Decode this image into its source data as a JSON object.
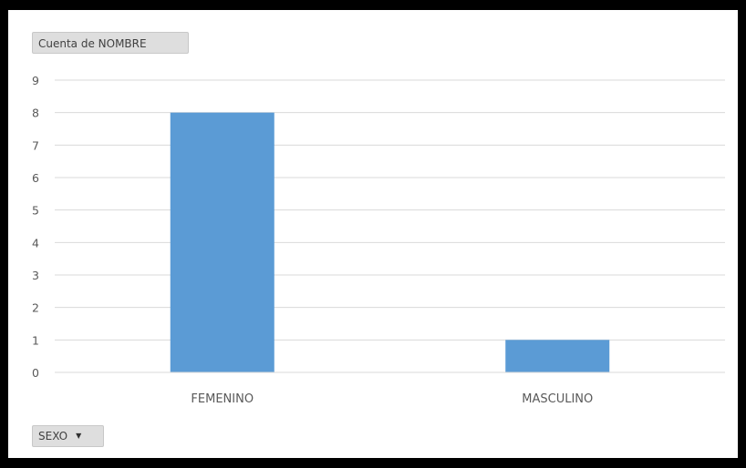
{
  "pivot": {
    "value_field_label": "Cuenta de NOMBRE",
    "axis_field_label": "SEXO",
    "axis_field_icon": "chevron-down-icon"
  },
  "chart_data": {
    "type": "bar",
    "categories": [
      "FEMENINO",
      "MASCULINO"
    ],
    "values": [
      8,
      1
    ],
    "title": "",
    "xlabel": "",
    "ylabel": "",
    "ylim": [
      0,
      9
    ],
    "yticks": [
      "0",
      "1",
      "2",
      "3",
      "4",
      "5",
      "6",
      "7",
      "8",
      "9"
    ],
    "grid": true,
    "legend": "none",
    "bar_color": "#5b9bd5",
    "grid_color": "#d9d9d9",
    "axis_color": "#d9d9d9"
  }
}
